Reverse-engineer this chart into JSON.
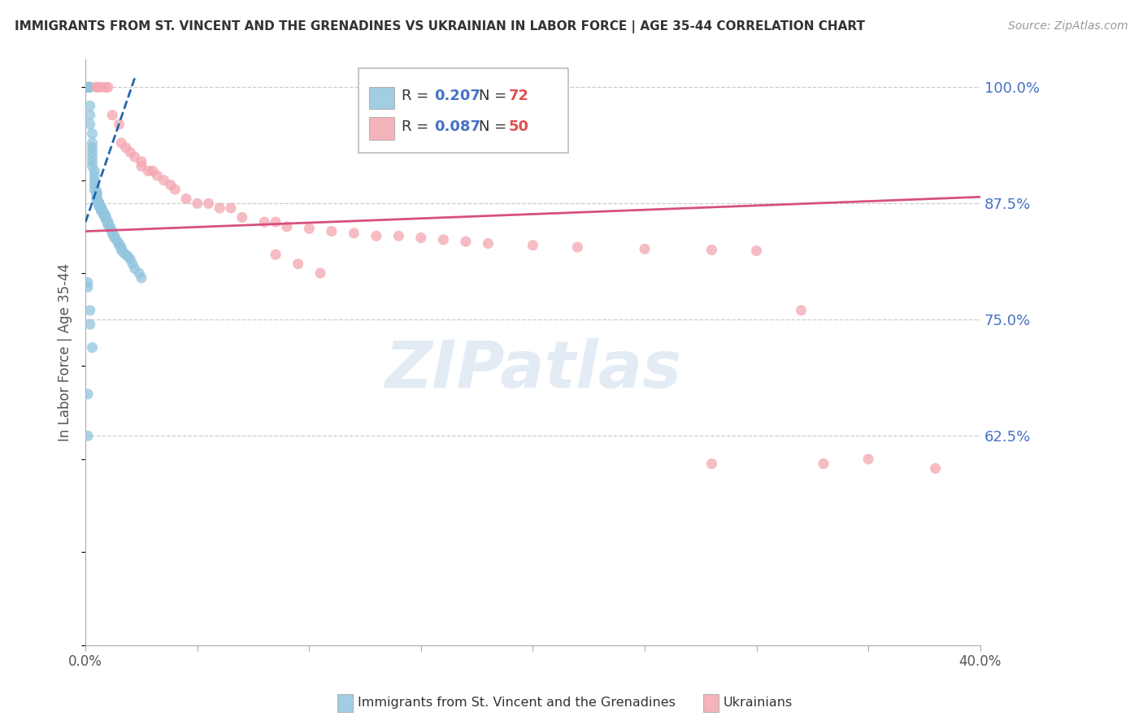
{
  "title": "IMMIGRANTS FROM ST. VINCENT AND THE GRENADINES VS UKRAINIAN IN LABOR FORCE | AGE 35-44 CORRELATION CHART",
  "source": "Source: ZipAtlas.com",
  "ylabel": "In Labor Force | Age 35-44",
  "xlim": [
    0.0,
    0.4
  ],
  "ylim": [
    0.4,
    1.03
  ],
  "yticks": [
    0.625,
    0.75,
    0.875,
    1.0
  ],
  "ytick_labels": [
    "62.5%",
    "75.0%",
    "87.5%",
    "100.0%"
  ],
  "blue_color": "#92c5de",
  "pink_color": "#f4a6b0",
  "trend_blue_color": "#2166ac",
  "trend_pink_color": "#d6517d",
  "watermark_color": "#c8d8ea",
  "blue_scatter_x": [
    0.001,
    0.001,
    0.001,
    0.002,
    0.002,
    0.002,
    0.002,
    0.002,
    0.003,
    0.003,
    0.003,
    0.003,
    0.003,
    0.003,
    0.003,
    0.004,
    0.004,
    0.004,
    0.004,
    0.004,
    0.005,
    0.005,
    0.005,
    0.005,
    0.005,
    0.005,
    0.006,
    0.006,
    0.006,
    0.006,
    0.006,
    0.007,
    0.007,
    0.007,
    0.007,
    0.007,
    0.008,
    0.008,
    0.008,
    0.008,
    0.009,
    0.009,
    0.009,
    0.01,
    0.01,
    0.01,
    0.011,
    0.011,
    0.012,
    0.012,
    0.013,
    0.013,
    0.014,
    0.015,
    0.015,
    0.016,
    0.016,
    0.017,
    0.018,
    0.019,
    0.02,
    0.021,
    0.022,
    0.024,
    0.025,
    0.001,
    0.001,
    0.002,
    0.002,
    0.003,
    0.001,
    0.001
  ],
  "blue_scatter_y": [
    1.0,
    1.0,
    1.0,
    1.0,
    1.0,
    0.98,
    0.97,
    0.96,
    0.95,
    0.94,
    0.935,
    0.93,
    0.925,
    0.92,
    0.915,
    0.91,
    0.905,
    0.9,
    0.895,
    0.89,
    0.888,
    0.886,
    0.884,
    0.882,
    0.88,
    0.878,
    0.876,
    0.875,
    0.874,
    0.873,
    0.872,
    0.871,
    0.87,
    0.869,
    0.868,
    0.867,
    0.866,
    0.865,
    0.864,
    0.863,
    0.862,
    0.86,
    0.858,
    0.856,
    0.854,
    0.852,
    0.85,
    0.848,
    0.845,
    0.842,
    0.84,
    0.838,
    0.835,
    0.832,
    0.83,
    0.828,
    0.825,
    0.822,
    0.82,
    0.818,
    0.815,
    0.81,
    0.805,
    0.8,
    0.795,
    0.79,
    0.785,
    0.76,
    0.745,
    0.72,
    0.67,
    0.625
  ],
  "pink_scatter_x": [
    0.005,
    0.005,
    0.007,
    0.009,
    0.01,
    0.012,
    0.015,
    0.016,
    0.018,
    0.02,
    0.022,
    0.025,
    0.025,
    0.028,
    0.03,
    0.032,
    0.035,
    0.038,
    0.04,
    0.045,
    0.05,
    0.055,
    0.06,
    0.065,
    0.07,
    0.08,
    0.085,
    0.09,
    0.1,
    0.11,
    0.12,
    0.13,
    0.14,
    0.15,
    0.16,
    0.17,
    0.18,
    0.2,
    0.22,
    0.25,
    0.28,
    0.3,
    0.32,
    0.35,
    0.38,
    0.085,
    0.095,
    0.105,
    0.28,
    0.33
  ],
  "pink_scatter_y": [
    1.0,
    1.0,
    1.0,
    1.0,
    1.0,
    0.97,
    0.96,
    0.94,
    0.935,
    0.93,
    0.925,
    0.92,
    0.915,
    0.91,
    0.91,
    0.905,
    0.9,
    0.895,
    0.89,
    0.88,
    0.875,
    0.875,
    0.87,
    0.87,
    0.86,
    0.855,
    0.855,
    0.85,
    0.848,
    0.845,
    0.843,
    0.84,
    0.84,
    0.838,
    0.836,
    0.834,
    0.832,
    0.83,
    0.828,
    0.826,
    0.825,
    0.824,
    0.76,
    0.6,
    0.59,
    0.82,
    0.81,
    0.8,
    0.595,
    0.595
  ],
  "pink_trend_x0": 0.0,
  "pink_trend_x1": 0.4,
  "pink_trend_y0": 0.845,
  "pink_trend_y1": 0.882,
  "blue_trend_x0": 0.0,
  "blue_trend_x1": 0.022,
  "blue_trend_y0": 0.855,
  "blue_trend_y1": 1.01
}
